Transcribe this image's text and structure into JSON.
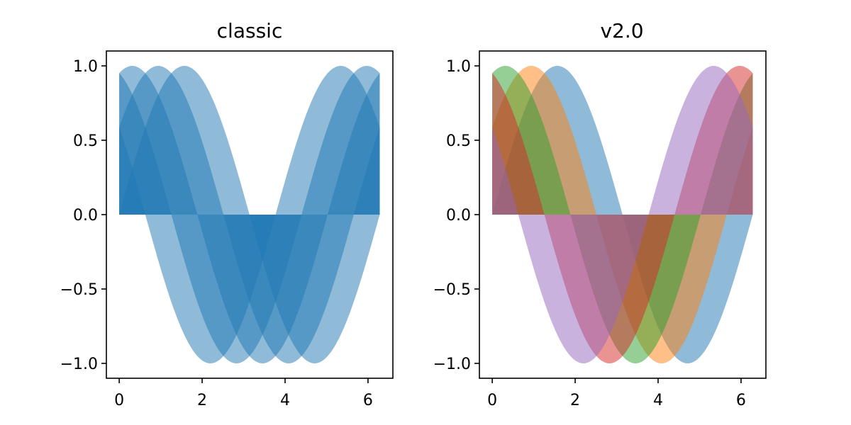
{
  "chart_data": [
    {
      "type": "area",
      "title": "classic",
      "xlabel": "",
      "ylabel": "",
      "xlim": [
        -0.31,
        6.6
      ],
      "ylim": [
        -1.1,
        1.1
      ],
      "x_ticks": [
        0,
        2,
        4,
        6
      ],
      "x_tick_labels": [
        "0",
        "2",
        "4",
        "6"
      ],
      "y_ticks": [
        1.0,
        0.5,
        0.0,
        -0.5,
        -1.0
      ],
      "y_tick_labels": [
        "1.0",
        "0.5",
        "0.0",
        "−0.5",
        "−1.0"
      ],
      "grid": false,
      "fill_baseline": 0,
      "function": "sin(x + phase), x from 0 to 2π",
      "series": [
        {
          "phase": 0.0,
          "color": "#1f77b4",
          "opacity": 0.5
        },
        {
          "phase": 0.628,
          "color": "#1f77b4",
          "opacity": 0.5
        },
        {
          "phase": 1.257,
          "color": "#1f77b4",
          "opacity": 0.5
        },
        {
          "phase": 1.885,
          "color": "#1f77b4",
          "opacity": 0.5
        },
        {
          "phase": 2.513,
          "color": "#1f77b4",
          "opacity": 0.5
        }
      ]
    },
    {
      "type": "area",
      "title": "v2.0",
      "xlabel": "",
      "ylabel": "",
      "xlim": [
        -0.31,
        6.6
      ],
      "ylim": [
        -1.1,
        1.1
      ],
      "x_ticks": [
        0,
        2,
        4,
        6
      ],
      "x_tick_labels": [
        "0",
        "2",
        "4",
        "6"
      ],
      "y_ticks": [
        1.0,
        0.5,
        0.0,
        -0.5,
        -1.0
      ],
      "y_tick_labels": [
        "1.0",
        "0.5",
        "0.0",
        "−0.5",
        "−1.0"
      ],
      "grid": false,
      "fill_baseline": 0,
      "function": "sin(x + phase), x from 0 to 2π",
      "series": [
        {
          "phase": 0.0,
          "color": "#1f77b4",
          "opacity": 0.5
        },
        {
          "phase": 0.628,
          "color": "#ff7f0e",
          "opacity": 0.5
        },
        {
          "phase": 1.257,
          "color": "#2ca02c",
          "opacity": 0.5
        },
        {
          "phase": 1.885,
          "color": "#d62728",
          "opacity": 0.5
        },
        {
          "phase": 2.513,
          "color": "#9467bd",
          "opacity": 0.5
        }
      ]
    }
  ]
}
